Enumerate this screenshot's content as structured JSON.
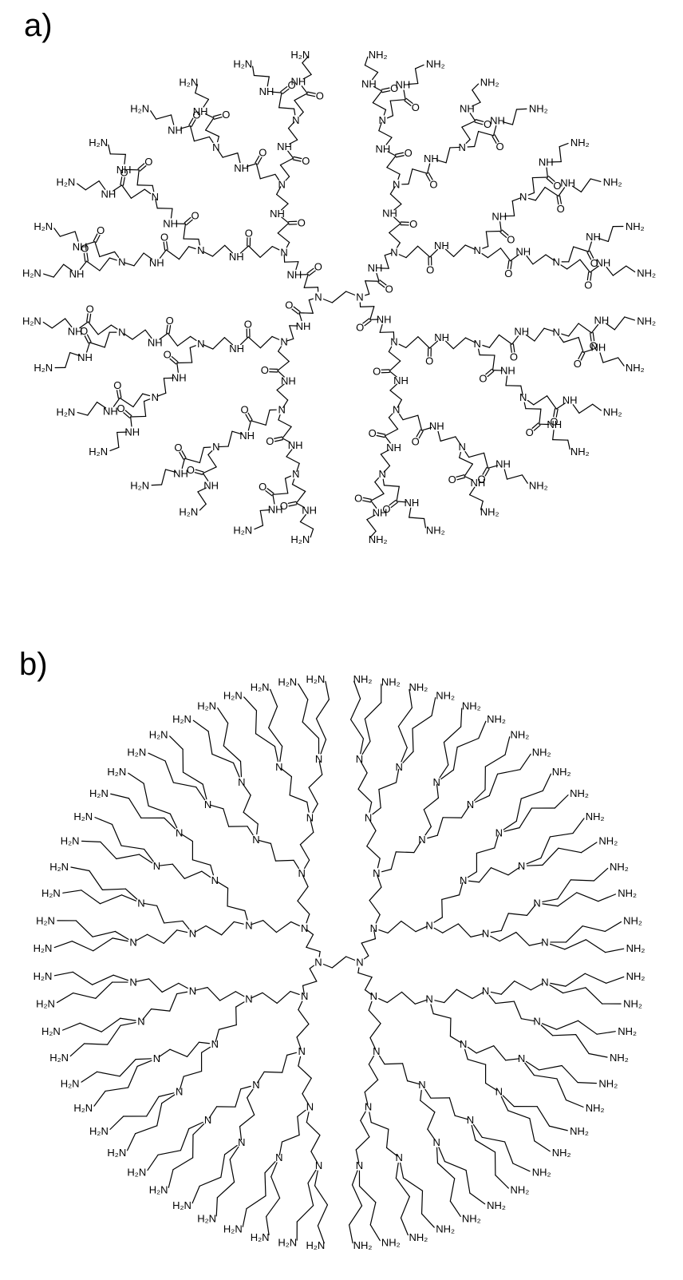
{
  "panels": [
    {
      "label": "a)",
      "atoms": {
        "amine": "N",
        "amide": "NH",
        "carbonyl": "O",
        "terminal_right": "NH₂",
        "terminal_left": "H₂N"
      }
    },
    {
      "label": "b)",
      "atoms": {
        "amine": "N",
        "terminal_right": "NH₂",
        "terminal_left": "H₂N"
      }
    }
  ]
}
